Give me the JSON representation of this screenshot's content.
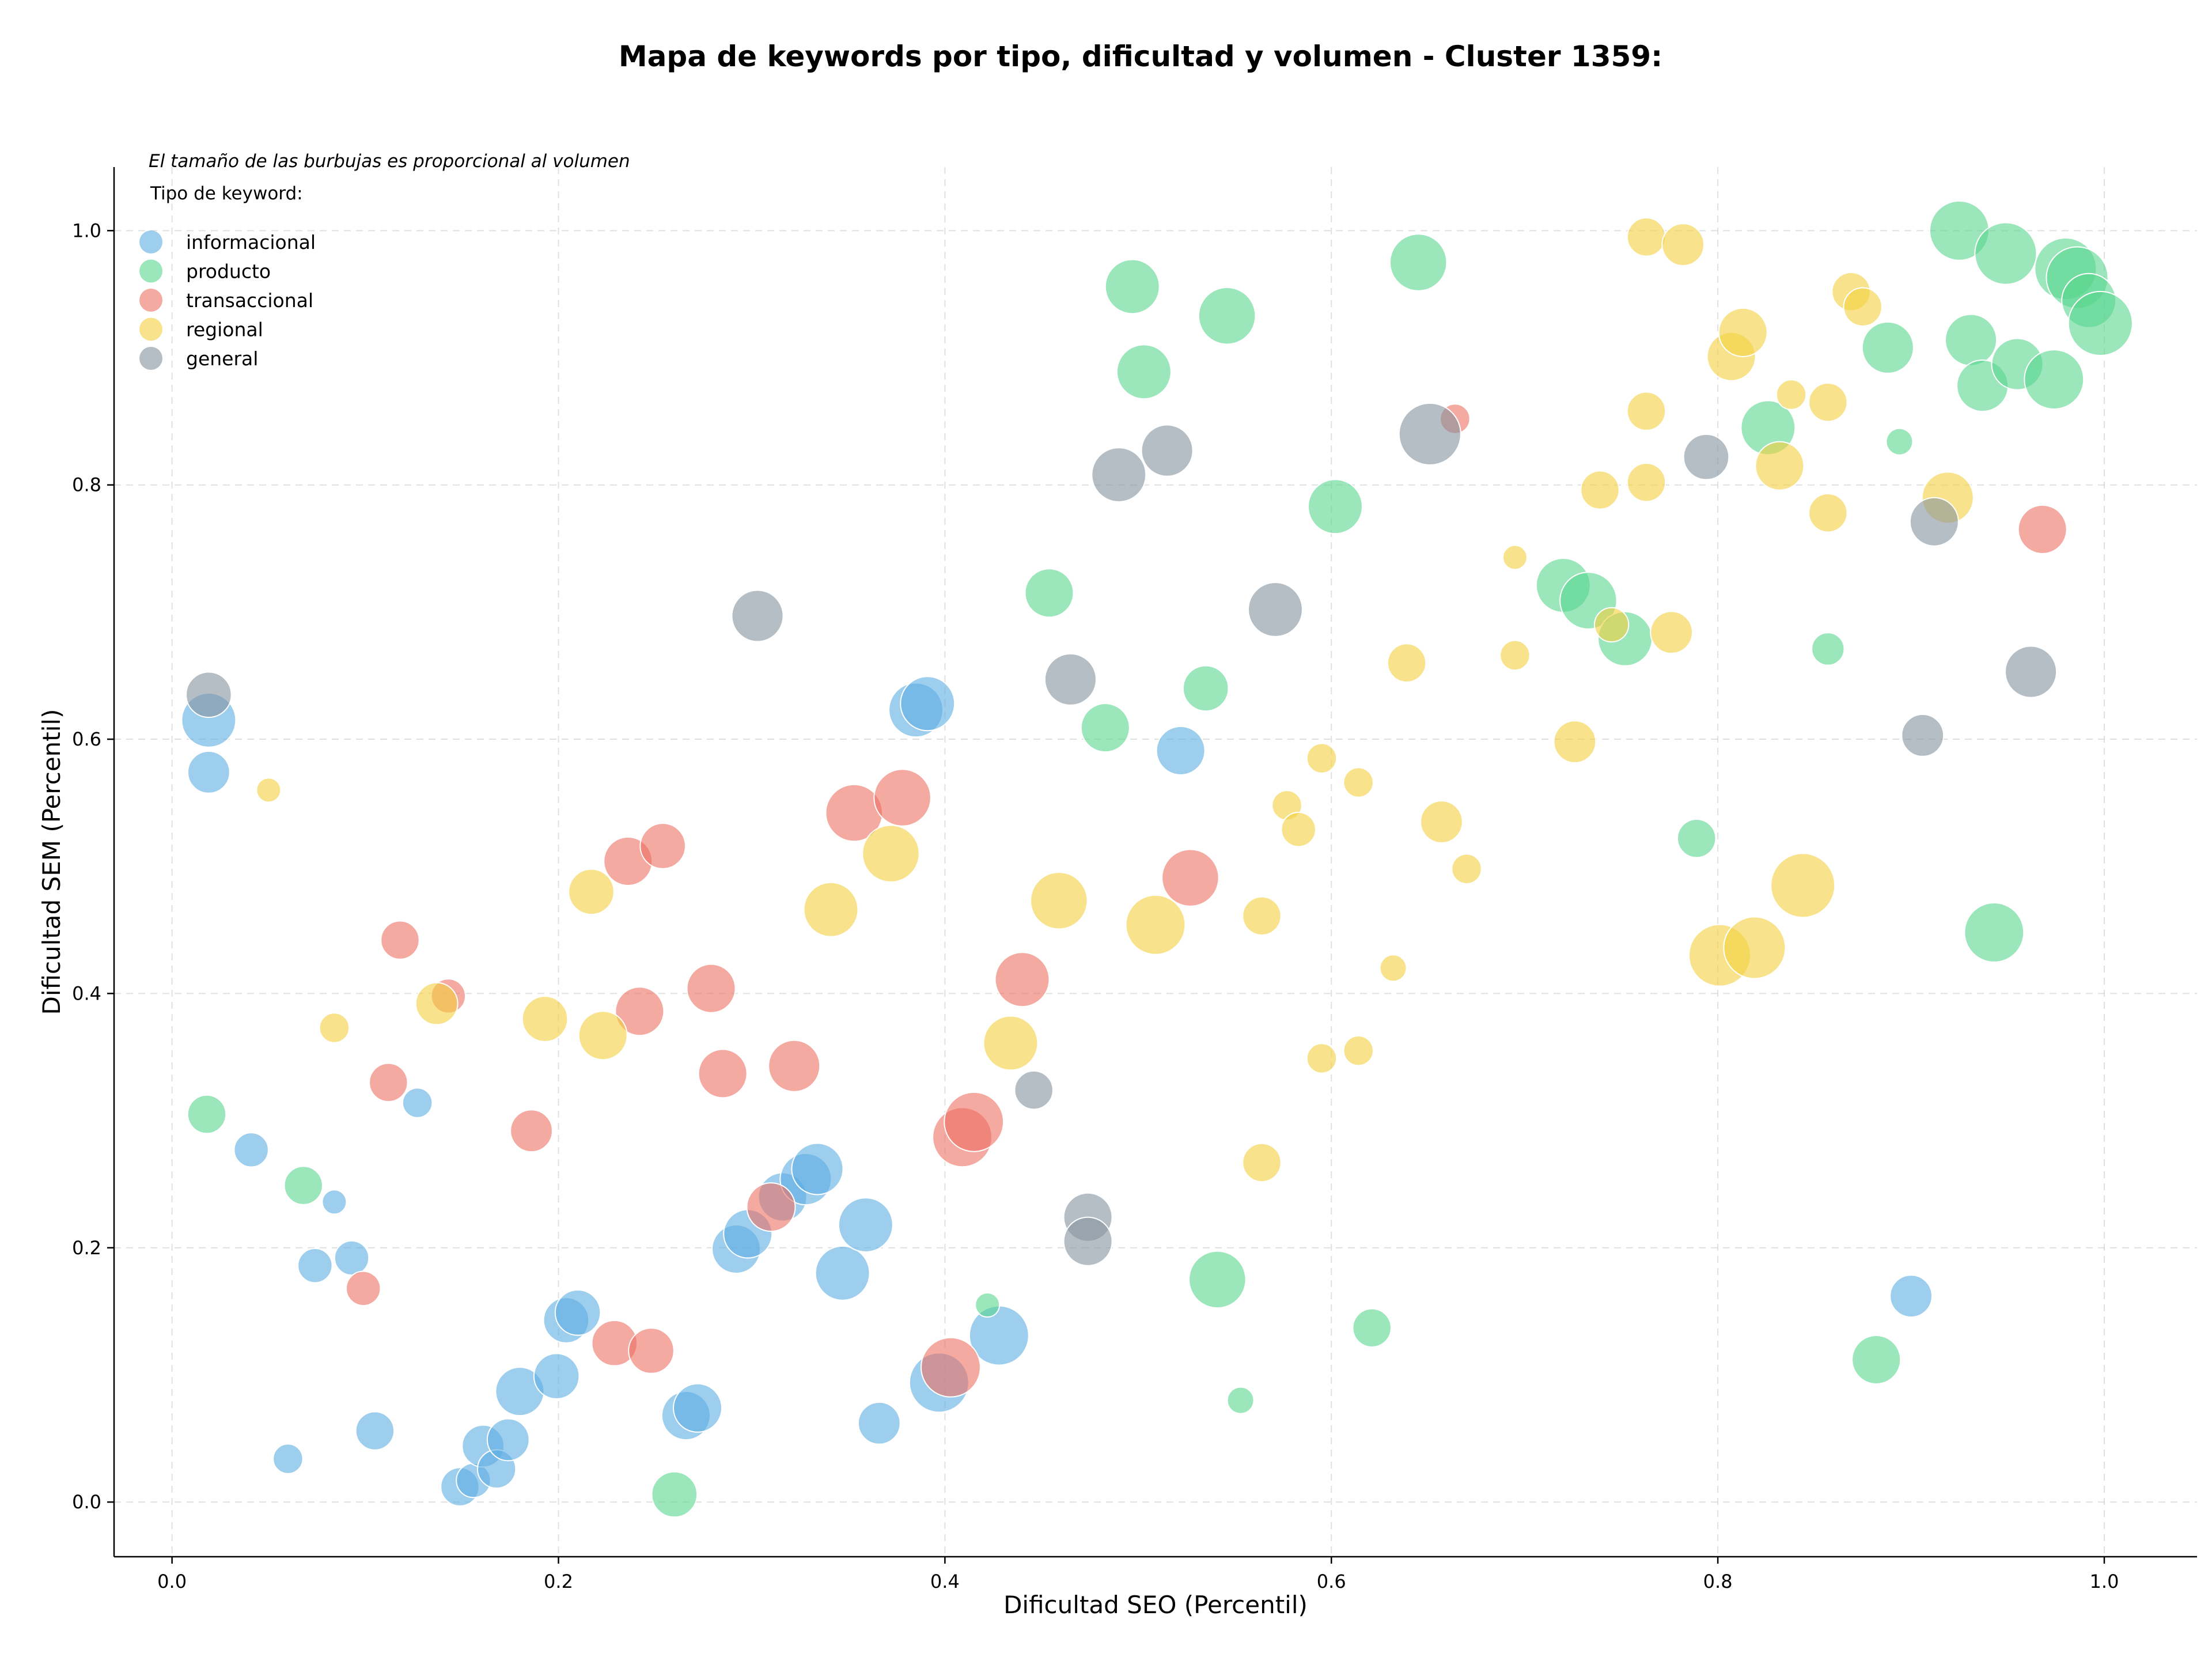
{
  "chart_data": {
    "type": "scatter",
    "title": "Mapa de keywords por tipo, dificultad y volumen - Cluster 1359:",
    "xlabel": "Dificultad SEO (Percentil)",
    "ylabel": "Dificultad SEM (Percentil)",
    "note": "El tamaño de las burbujas es proporcional al volumen",
    "legend_title": "Tipo de keyword:",
    "legend_position": "top-left",
    "xlim": [
      -0.03,
      1.048
    ],
    "ylim": [
      -0.043,
      1.05
    ],
    "xticks": [
      0.0,
      0.2,
      0.4,
      0.6,
      0.8,
      1.0
    ],
    "yticks": [
      0.0,
      0.2,
      0.4,
      0.6,
      0.8,
      1.0
    ],
    "grid": true,
    "series": [
      {
        "name": "informacional",
        "color": "#5DADE2",
        "points": [
          [
            0.019,
            0.615,
            5
          ],
          [
            0.019,
            0.574,
            3
          ],
          [
            0.041,
            0.277,
            2
          ],
          [
            0.06,
            0.034,
            1.5
          ],
          [
            0.074,
            0.186,
            2
          ],
          [
            0.084,
            0.236,
            1
          ],
          [
            0.093,
            0.192,
            2
          ],
          [
            0.105,
            0.056,
            2.5
          ],
          [
            0.127,
            0.314,
            1.5
          ],
          [
            0.149,
            0.012,
            2.5
          ],
          [
            0.156,
            0.017,
            2
          ],
          [
            0.161,
            0.044,
            3
          ],
          [
            0.168,
            0.026,
            2.5
          ],
          [
            0.174,
            0.049,
            3
          ],
          [
            0.18,
            0.087,
            4
          ],
          [
            0.199,
            0.099,
            3.5
          ],
          [
            0.204,
            0.143,
            3.5
          ],
          [
            0.21,
            0.149,
            3.5
          ],
          [
            0.266,
            0.068,
            4
          ],
          [
            0.272,
            0.074,
            4
          ],
          [
            0.292,
            0.199,
            4
          ],
          [
            0.298,
            0.211,
            4
          ],
          [
            0.316,
            0.24,
            4
          ],
          [
            0.328,
            0.254,
            4.5
          ],
          [
            0.334,
            0.262,
            4.5
          ],
          [
            0.347,
            0.18,
            5
          ],
          [
            0.359,
            0.218,
            5
          ],
          [
            0.366,
            0.062,
            3
          ],
          [
            0.385,
            0.623,
            5
          ],
          [
            0.391,
            0.628,
            5
          ],
          [
            0.397,
            0.094,
            6
          ],
          [
            0.428,
            0.131,
            6
          ],
          [
            0.522,
            0.591,
            4
          ],
          [
            0.9,
            0.162,
            3
          ]
        ]
      },
      {
        "name": "producto",
        "color": "#58D68D",
        "points": [
          [
            0.018,
            0.305,
            2.5
          ],
          [
            0.068,
            0.249,
            2.5
          ],
          [
            0.26,
            0.006,
            3.5
          ],
          [
            0.422,
            0.155,
            1
          ],
          [
            0.454,
            0.715,
            4
          ],
          [
            0.483,
            0.609,
            4
          ],
          [
            0.497,
            0.956,
            5
          ],
          [
            0.503,
            0.889,
            5
          ],
          [
            0.535,
            0.64,
            3.5
          ],
          [
            0.541,
            0.175,
            5.5
          ],
          [
            0.546,
            0.933,
            5.5
          ],
          [
            0.553,
            0.08,
            1.2
          ],
          [
            0.602,
            0.783,
            5
          ],
          [
            0.621,
            0.137,
            2.5
          ],
          [
            0.645,
            0.975,
            5.5
          ],
          [
            0.72,
            0.721,
            5
          ],
          [
            0.733,
            0.709,
            5.5
          ],
          [
            0.752,
            0.679,
            5
          ],
          [
            0.789,
            0.522,
            2.5
          ],
          [
            0.826,
            0.845,
            5
          ],
          [
            0.857,
            0.671,
            1.8
          ],
          [
            0.882,
            0.112,
            4
          ],
          [
            0.888,
            0.908,
            4.5
          ],
          [
            0.894,
            0.834,
            1.2
          ],
          [
            0.925,
            1.0,
            6
          ],
          [
            0.931,
            0.914,
            4.5
          ],
          [
            0.937,
            0.878,
            4.5
          ],
          [
            0.943,
            0.448,
            6
          ],
          [
            0.949,
            0.982,
            6.5
          ],
          [
            0.955,
            0.895,
            4.5
          ],
          [
            0.974,
            0.883,
            6
          ],
          [
            0.98,
            0.97,
            6.5
          ],
          [
            0.986,
            0.963,
            6.5
          ],
          [
            0.992,
            0.945,
            5
          ],
          [
            0.998,
            0.927,
            7
          ]
        ]
      },
      {
        "name": "transaccional",
        "color": "#EC7063",
        "points": [
          [
            0.099,
            0.168,
            2
          ],
          [
            0.112,
            0.33,
            2.5
          ],
          [
            0.118,
            0.442,
            2.5
          ],
          [
            0.143,
            0.398,
            2
          ],
          [
            0.186,
            0.292,
            3
          ],
          [
            0.229,
            0.125,
            3.5
          ],
          [
            0.236,
            0.504,
            4
          ],
          [
            0.242,
            0.386,
            4
          ],
          [
            0.248,
            0.119,
            3.5
          ],
          [
            0.254,
            0.516,
            3.5
          ],
          [
            0.279,
            0.404,
            4
          ],
          [
            0.285,
            0.337,
            4
          ],
          [
            0.31,
            0.232,
            4
          ],
          [
            0.322,
            0.343,
            4.5
          ],
          [
            0.353,
            0.542,
            5.5
          ],
          [
            0.378,
            0.554,
            5.5
          ],
          [
            0.403,
            0.106,
            6
          ],
          [
            0.409,
            0.287,
            6
          ],
          [
            0.415,
            0.299,
            6
          ],
          [
            0.44,
            0.411,
            5
          ],
          [
            0.527,
            0.491,
            5.5
          ],
          [
            0.664,
            0.852,
            1.5
          ],
          [
            0.968,
            0.765,
            4
          ]
        ]
      },
      {
        "name": "regional",
        "color": "#F4D03F",
        "points": [
          [
            0.05,
            0.56,
            1
          ],
          [
            0.084,
            0.373,
            1.5
          ],
          [
            0.137,
            0.392,
            3
          ],
          [
            0.193,
            0.38,
            3.5
          ],
          [
            0.217,
            0.48,
            3.5
          ],
          [
            0.223,
            0.367,
            4
          ],
          [
            0.341,
            0.466,
            5
          ],
          [
            0.372,
            0.51,
            5.5
          ],
          [
            0.434,
            0.361,
            5
          ],
          [
            0.459,
            0.473,
            5.5
          ],
          [
            0.509,
            0.454,
            6
          ],
          [
            0.564,
            0.461,
            2.5
          ],
          [
            0.564,
            0.267,
            2.5
          ],
          [
            0.577,
            0.548,
            1.5
          ],
          [
            0.583,
            0.529,
            2
          ],
          [
            0.595,
            0.585,
            1.5
          ],
          [
            0.595,
            0.349,
            1.5
          ],
          [
            0.614,
            0.566,
            1.5
          ],
          [
            0.614,
            0.355,
            1.5
          ],
          [
            0.632,
            0.42,
            1.2
          ],
          [
            0.639,
            0.66,
            2.5
          ],
          [
            0.657,
            0.535,
            3
          ],
          [
            0.67,
            0.498,
            1.5
          ],
          [
            0.695,
            0.743,
            1
          ],
          [
            0.695,
            0.666,
            1.5
          ],
          [
            0.726,
            0.598,
            3
          ],
          [
            0.739,
            0.796,
            2.5
          ],
          [
            0.745,
            0.69,
            2
          ],
          [
            0.763,
            0.995,
            2.5
          ],
          [
            0.763,
            0.858,
            2.5
          ],
          [
            0.763,
            0.802,
            2.5
          ],
          [
            0.776,
            0.684,
            3
          ],
          [
            0.782,
            0.989,
            3
          ],
          [
            0.801,
            0.43,
            6.5
          ],
          [
            0.807,
            0.901,
            4
          ],
          [
            0.813,
            0.92,
            4
          ],
          [
            0.819,
            0.436,
            6.5
          ],
          [
            0.832,
            0.815,
            4
          ],
          [
            0.838,
            0.871,
            1.5
          ],
          [
            0.844,
            0.485,
            7
          ],
          [
            0.857,
            0.865,
            2.5
          ],
          [
            0.857,
            0.778,
            2.5
          ],
          [
            0.869,
            0.952,
            2.5
          ],
          [
            0.875,
            0.94,
            2.5
          ],
          [
            0.919,
            0.79,
            4.5
          ]
        ]
      },
      {
        "name": "general",
        "color": "#85929E",
        "points": [
          [
            0.019,
            0.635,
            3.5
          ],
          [
            0.303,
            0.697,
            4.5
          ],
          [
            0.446,
            0.324,
            2.5
          ],
          [
            0.465,
            0.647,
            4.5
          ],
          [
            0.474,
            0.224,
            4
          ],
          [
            0.474,
            0.205,
            4
          ],
          [
            0.49,
            0.808,
            5
          ],
          [
            0.515,
            0.827,
            4.5
          ],
          [
            0.571,
            0.702,
            5
          ],
          [
            0.651,
            0.84,
            6.5
          ],
          [
            0.794,
            0.822,
            3.5
          ],
          [
            0.906,
            0.603,
            3
          ],
          [
            0.912,
            0.771,
            4
          ],
          [
            0.962,
            0.653,
            4.5
          ]
        ]
      }
    ]
  }
}
